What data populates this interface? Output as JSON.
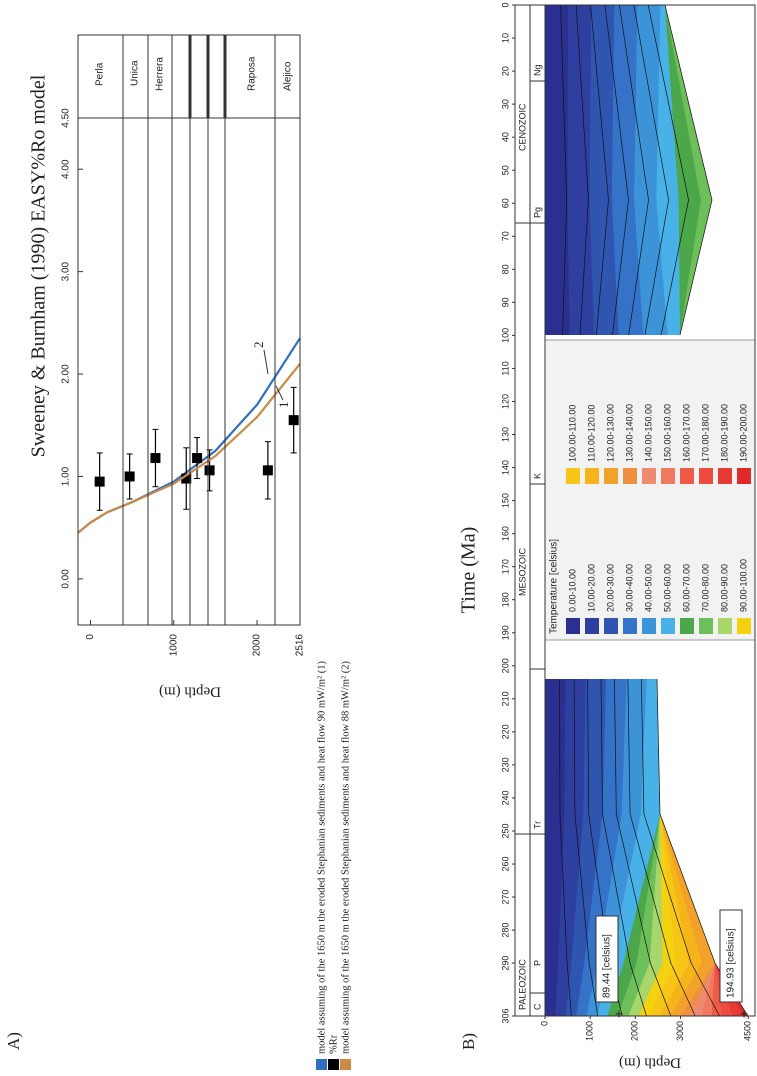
{
  "chart_data": [
    {
      "type": "scatter",
      "panel_label": "A)",
      "title": "Sweeney & Burnham (1990) EASY%Ro model",
      "ylabel": "Depth (m)",
      "xlim": [
        -0.45,
        4.5
      ],
      "xticks": [
        {
          "value": 0,
          "label": "0.00"
        },
        {
          "value": 1,
          "label": "1.00"
        },
        {
          "value": 2,
          "label": "2.00"
        },
        {
          "value": 3,
          "label": "3.00"
        },
        {
          "value": 4,
          "label": "4.00"
        },
        {
          "value": 4.5,
          "label": "4.50"
        }
      ],
      "ylim": [
        -150,
        2516
      ],
      "yticks": [
        0,
        1000,
        2000,
        2516
      ],
      "y_inverted": true,
      "formations": [
        "Perla",
        "Unica",
        "Herrera",
        "Raposa",
        "Alejico"
      ],
      "annotations": [
        "1",
        "2"
      ],
      "series": [
        {
          "name": "model assuming of the 1650 m the eroded Stephanian sediments and heat flow 90 mW/m² (1)",
          "color": "#2f6fc0",
          "style": "line",
          "values": [
            0.45,
            0.55,
            0.65,
            0.75,
            0.95,
            1.25,
            1.7,
            2.35
          ],
          "depth": [
            -150,
            0,
            200,
            500,
            1000,
            1500,
            2000,
            2516
          ]
        },
        {
          "name": "%Rr",
          "color": "#000000",
          "style": "markers",
          "values": [
            0.95,
            1.0,
            1.18,
            0.98,
            1.18,
            1.06,
            1.06,
            1.55
          ],
          "depth": [
            110,
            470,
            780,
            1150,
            1280,
            1430,
            2130,
            2440
          ],
          "errors": [
            0.28,
            0.22,
            0.28,
            0.3,
            0.2,
            0.2,
            0.28,
            0.32
          ]
        },
        {
          "name": "model assuming of the 1650 m the eroded Stephanian sediments and heat flow 88 mW/m² (2)",
          "color": "#c98b45",
          "style": "line",
          "values": [
            0.45,
            0.55,
            0.65,
            0.75,
            0.93,
            1.2,
            1.58,
            2.1
          ],
          "depth": [
            -150,
            0,
            200,
            500,
            1000,
            1500,
            2000,
            2516
          ]
        }
      ]
    },
    {
      "type": "contour",
      "panel_label": "B)",
      "xlabel": "Time (Ma)",
      "ylabel": "Depth (m)",
      "xlim": [
        306,
        0
      ],
      "xticks": [
        306,
        290,
        280,
        270,
        260,
        250,
        240,
        230,
        220,
        210,
        200,
        190,
        180,
        170,
        160,
        150,
        140,
        130,
        120,
        110,
        100,
        90,
        80,
        70,
        60,
        50,
        40,
        30,
        20,
        10,
        0
      ],
      "ylim": [
        0,
        4650
      ],
      "yticks": [
        0,
        1000,
        2000,
        3000,
        4500
      ],
      "eras": [
        "PALEOZOIC",
        "MESOZOIC",
        "CENOZOIC"
      ],
      "periods": [
        "C",
        "P",
        "Tr",
        "K",
        "Pg",
        "Ng"
      ],
      "annotations": [
        "89.44 [celsius]",
        "194.93 [celsius]"
      ],
      "legend_title": "Temperature [celsius]",
      "legend": [
        {
          "label": "0.00-10.00",
          "color": "#2b2f8f"
        },
        {
          "label": "10.00-20.00",
          "color": "#2e3f9f"
        },
        {
          "label": "20.00-30.00",
          "color": "#2f55b0"
        },
        {
          "label": "30.00-40.00",
          "color": "#3573c8"
        },
        {
          "label": "40.00-50.00",
          "color": "#3d93d8"
        },
        {
          "label": "50.00-60.00",
          "color": "#48b2e8"
        },
        {
          "label": "60.00-70.00",
          "color": "#4ca64a"
        },
        {
          "label": "70.00-80.00",
          "color": "#6dbf5a"
        },
        {
          "label": "80.00-90.00",
          "color": "#a8d66a"
        },
        {
          "label": "90.00-100.00",
          "color": "#f5d20f"
        },
        {
          "label": "100.00-110.00",
          "color": "#f7c515"
        },
        {
          "label": "110.00-120.00",
          "color": "#f5b51a"
        },
        {
          "label": "120.00-130.00",
          "color": "#f2a22a"
        },
        {
          "label": "130.00-140.00",
          "color": "#ee9040"
        },
        {
          "label": "140.00-150.00",
          "color": "#ee8a70"
        },
        {
          "label": "150.00-160.00",
          "color": "#ef7a60"
        },
        {
          "label": "160.00-170.00",
          "color": "#ee5a45"
        },
        {
          "label": "170.00-180.00",
          "color": "#ee4a40"
        },
        {
          "label": "180.00-190.00",
          "color": "#e83a35"
        },
        {
          "label": "190.00-200.00",
          "color": "#e02a2a"
        }
      ]
    }
  ]
}
